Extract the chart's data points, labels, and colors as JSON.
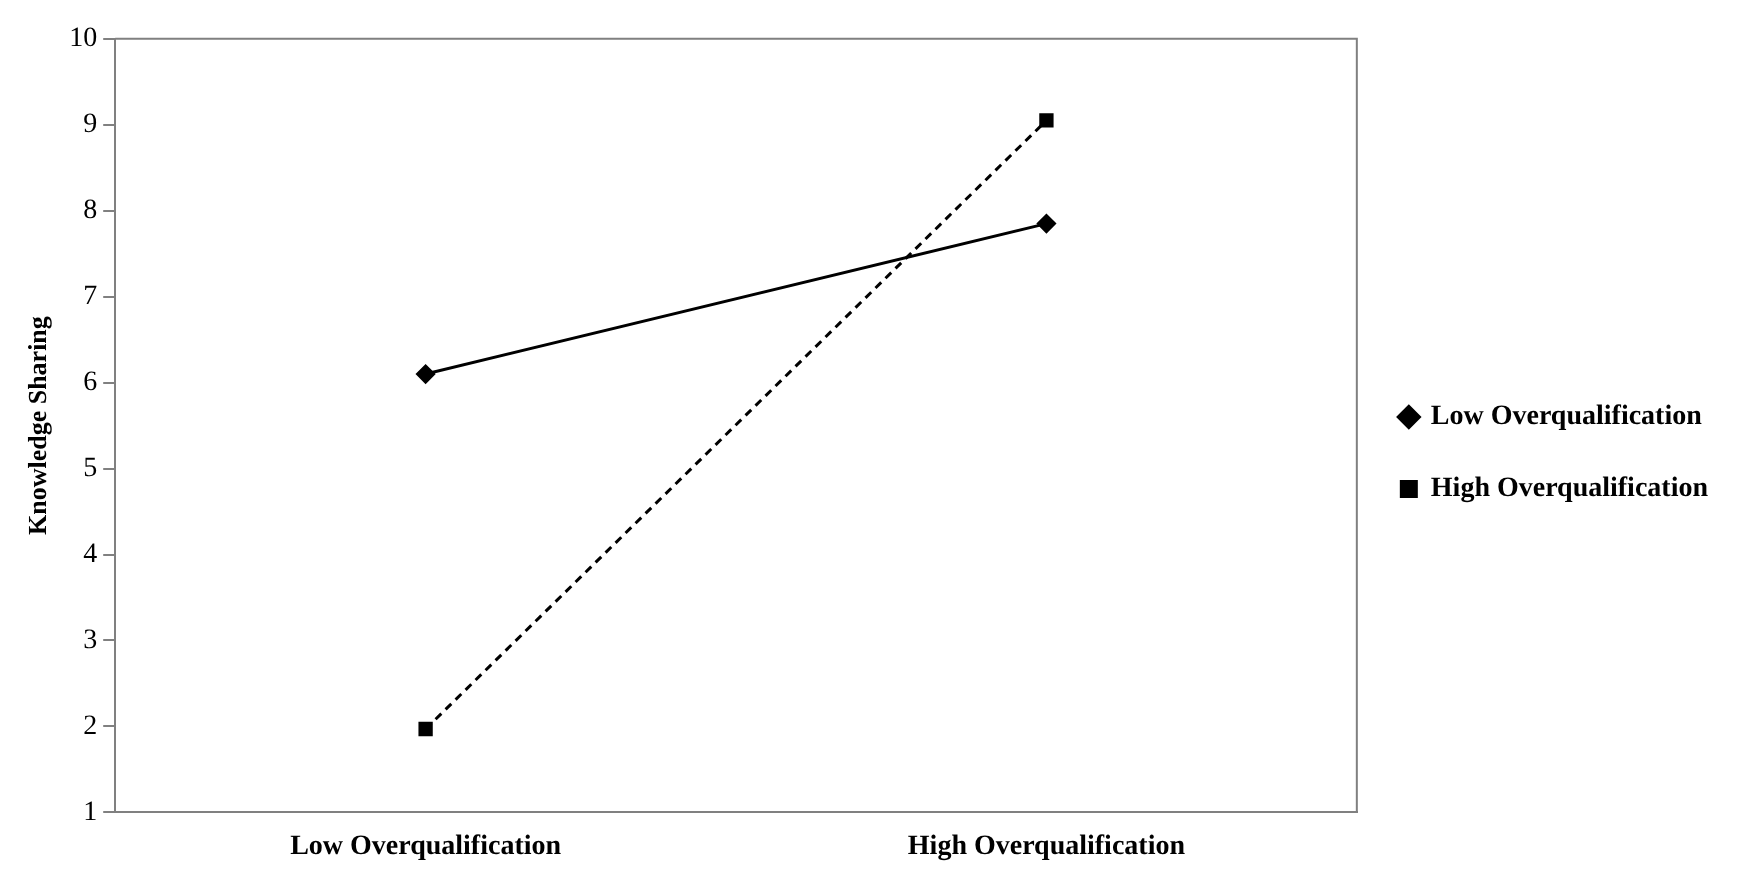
{
  "chart_data": {
    "type": "line",
    "ylabel": "Knowledge Sharing",
    "categories": [
      "Low Overqualification",
      "High Overqualification"
    ],
    "series": [
      {
        "name": "Low Overqualification",
        "color": "#000000",
        "values": [
          6.1,
          7.85
        ],
        "marker": "diamond",
        "line_style": "solid"
      },
      {
        "name": "High Overqualification",
        "color": "#000000",
        "values": [
          1.97,
          9.05
        ],
        "marker": "square",
        "line_style": "dashed"
      }
    ],
    "ylim": [
      1,
      10
    ],
    "yticks": [
      1,
      2,
      3,
      4,
      5,
      6,
      7,
      8,
      9,
      10
    ],
    "grid": false,
    "legend": "right"
  }
}
